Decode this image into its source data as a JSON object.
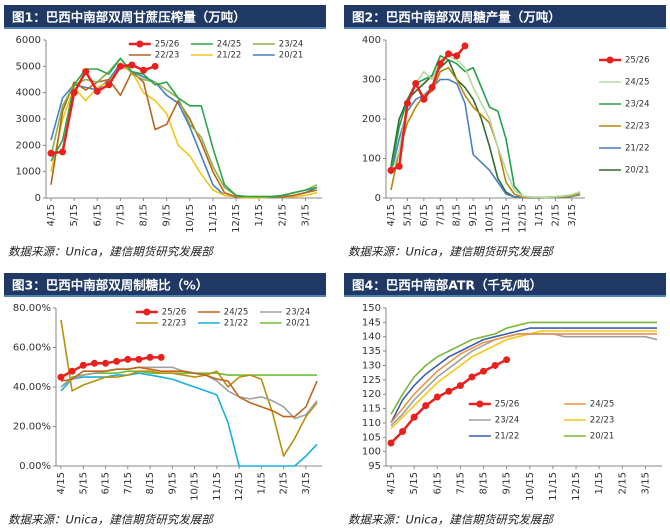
{
  "chart_data": [
    {
      "type": "line",
      "title": "图1：巴西中南部双周甘蔗压榨量（万吨）",
      "source": "数据来源：Unica，建信期货研究发展部",
      "legend": "top",
      "categories": [
        "4/15",
        null,
        "5/15",
        null,
        "6/15",
        null,
        "7/15",
        null,
        "8/15",
        null,
        "9/15",
        null,
        "10/15",
        null,
        "11/15",
        null,
        "12/15",
        null,
        "1/15",
        null,
        "2/15",
        null,
        "3/15",
        null
      ],
      "ylim": [
        0,
        6000
      ],
      "yticks": [
        0,
        1000,
        2000,
        3000,
        4000,
        5000,
        6000
      ],
      "series": [
        {
          "name": "25/26",
          "color": "#e8211f",
          "marker": true,
          "values": [
            1700,
            1750,
            4000,
            4800,
            4050,
            4300,
            5000,
            5050,
            4850,
            5000,
            null,
            null,
            null,
            null,
            null,
            null,
            null,
            null,
            null,
            null,
            null,
            null,
            null,
            null
          ]
        },
        {
          "name": "24/25",
          "color": "#2ca64a",
          "values": [
            1400,
            2200,
            4300,
            4900,
            4900,
            4700,
            5300,
            4800,
            4700,
            4300,
            4400,
            3800,
            3500,
            3500,
            1900,
            500,
            100,
            50,
            50,
            50,
            100,
            200,
            300,
            400
          ]
        },
        {
          "name": "23/24",
          "color": "#8bb04a",
          "values": [
            1600,
            3500,
            4300,
            4500,
            4400,
            4800,
            5300,
            4700,
            4500,
            4400,
            4100,
            3800,
            2800,
            2300,
            1200,
            400,
            100,
            50,
            50,
            50,
            100,
            200,
            300,
            500
          ]
        },
        {
          "name": "22/23",
          "color": "#b5651d",
          "values": [
            500,
            3300,
            4400,
            4100,
            4400,
            4500,
            3900,
            4800,
            4400,
            2600,
            2800,
            3700,
            3000,
            2100,
            1000,
            200,
            50,
            50,
            50,
            50,
            50,
            100,
            200,
            300
          ]
        },
        {
          "name": "21/22",
          "color": "#f5c518",
          "values": [
            1000,
            3000,
            4200,
            3700,
            4200,
            4400,
            5000,
            4800,
            4000,
            3700,
            3200,
            2000,
            1600,
            900,
            300,
            100,
            50,
            0,
            0,
            50,
            50,
            50,
            100,
            200
          ]
        },
        {
          "name": "20/21",
          "color": "#4a7fc1",
          "values": [
            2200,
            3800,
            4300,
            4200,
            4100,
            4500,
            5100,
            4800,
            4600,
            4400,
            3900,
            3600,
            2700,
            1600,
            500,
            100,
            50,
            50,
            50,
            50,
            50,
            100,
            200,
            400
          ]
        }
      ]
    },
    {
      "type": "line",
      "title": "图2：巴西中南部双周糖产量（万吨）",
      "source": "数据来源：Unica，建信期货研究发展部",
      "legend": "right",
      "categories": [
        "4/15",
        null,
        "5/15",
        null,
        "6/15",
        null,
        "7/15",
        null,
        "8/15",
        null,
        "9/15",
        null,
        "10/15",
        null,
        "11/15",
        null,
        "12/15",
        null,
        "1/15",
        null,
        "2/15",
        null,
        "3/15",
        null
      ],
      "ylim": [
        0,
        400
      ],
      "yticks": [
        0,
        100,
        200,
        300,
        400
      ],
      "series": [
        {
          "name": "25/26",
          "color": "#e8211f",
          "marker": true,
          "values": [
            70,
            80,
            240,
            290,
            250,
            280,
            340,
            365,
            360,
            385,
            null,
            null,
            null,
            null,
            null,
            null,
            null,
            null,
            null,
            null,
            null,
            null,
            null,
            null
          ]
        },
        {
          "name": "24/25",
          "color": "#b8d8a0",
          "values": [
            60,
            120,
            240,
            290,
            320,
            300,
            350,
            360,
            350,
            330,
            280,
            240,
            200,
            130,
            70,
            20,
            5,
            2,
            2,
            2,
            3,
            5,
            8,
            15
          ]
        },
        {
          "name": "23/24",
          "color": "#22a04a",
          "values": [
            70,
            180,
            250,
            290,
            300,
            310,
            360,
            350,
            340,
            320,
            330,
            280,
            230,
            220,
            150,
            30,
            5,
            2,
            2,
            2,
            3,
            5,
            8,
            15
          ]
        },
        {
          "name": "22/23",
          "color": "#b8860b",
          "values": [
            20,
            120,
            190,
            230,
            260,
            270,
            320,
            330,
            300,
            260,
            230,
            210,
            190,
            130,
            40,
            10,
            2,
            1,
            1,
            1,
            2,
            3,
            5,
            10
          ]
        },
        {
          "name": "21/22",
          "color": "#4a7fc1",
          "values": [
            60,
            150,
            220,
            250,
            260,
            280,
            300,
            300,
            290,
            240,
            110,
            90,
            70,
            40,
            10,
            3,
            1,
            0,
            0,
            1,
            1,
            2,
            4,
            8
          ]
        },
        {
          "name": "20/21",
          "color": "#2e6b2e",
          "values": [
            80,
            200,
            250,
            270,
            290,
            310,
            330,
            350,
            300,
            280,
            250,
            200,
            130,
            50,
            15,
            3,
            1,
            1,
            1,
            1,
            2,
            3,
            5,
            15
          ]
        }
      ]
    },
    {
      "type": "line",
      "title": "图3：巴西中南部双周制糖比（%）",
      "source": "数据来源：Unica，建信期货研究发展部",
      "legend": "top",
      "categories": [
        "4/15",
        null,
        "5/15",
        null,
        "6/15",
        null,
        "7/15",
        null,
        "8/15",
        null,
        "9/15",
        null,
        "10/15",
        null,
        "11/15",
        null,
        "12/15",
        null,
        "1/15",
        null,
        "2/15",
        null,
        "3/15",
        null
      ],
      "ylim": [
        0,
        80
      ],
      "yticks": [
        {
          "value": 0,
          "label": "0.00%"
        },
        {
          "value": 20,
          "label": "20.00%"
        },
        {
          "value": 40,
          "label": "40.00%"
        },
        {
          "value": 60,
          "label": "60.00%"
        },
        {
          "value": 80,
          "label": "80.00%"
        }
      ],
      "series": [
        {
          "name": "25/26",
          "color": "#e8211f",
          "marker": true,
          "values": [
            45,
            48,
            51,
            52,
            52,
            53,
            54,
            54,
            55,
            55,
            null,
            null,
            null,
            null,
            null,
            null,
            null,
            null,
            null,
            null,
            null,
            null,
            null,
            null
          ]
        },
        {
          "name": "24/25",
          "color": "#c0651d",
          "values": [
            43,
            44,
            48,
            48,
            48,
            49,
            49,
            50,
            49,
            48,
            48,
            48,
            47,
            46,
            44,
            43,
            35,
            32,
            30,
            28,
            25,
            25,
            30,
            43
          ]
        },
        {
          "name": "23/24",
          "color": "#a0a0a0",
          "values": [
            40,
            44,
            46,
            47,
            48,
            49,
            49,
            50,
            50,
            50,
            50,
            48,
            47,
            46,
            43,
            38,
            35,
            34,
            35,
            33,
            30,
            24,
            26,
            33
          ]
        },
        {
          "name": "22/23",
          "color": "#b8900b",
          "values": [
            74,
            38,
            41,
            43,
            45,
            45,
            46,
            48,
            48,
            47,
            47,
            46,
            45,
            46,
            48,
            40,
            45,
            46,
            44,
            27,
            5,
            14,
            25,
            32
          ]
        },
        {
          "name": "21/22",
          "color": "#1ab0e0",
          "values": [
            38,
            44,
            45,
            45,
            45,
            46,
            46,
            47,
            46,
            45,
            44,
            42,
            40,
            38,
            36,
            22,
            0,
            0,
            0,
            0,
            0,
            0,
            5,
            11
          ]
        },
        {
          "name": "20/21",
          "color": "#6cbf3a",
          "values": [
            40,
            45,
            46,
            47,
            47,
            47,
            48,
            48,
            47,
            47,
            47,
            47,
            47,
            47,
            47,
            46,
            46,
            46,
            46,
            46,
            46,
            46,
            46,
            46
          ]
        }
      ]
    },
    {
      "type": "line",
      "title": "图4：巴西中南部ATR（千克/吨）",
      "source": "数据来源：Unica，建信期货研究发展部",
      "legend": "bottom",
      "categories": [
        "4/15",
        null,
        "5/15",
        null,
        "6/15",
        null,
        "7/15",
        null,
        "8/15",
        null,
        "9/15",
        null,
        "10/15",
        null,
        "11/15",
        null,
        "12/15",
        null,
        "1/15",
        null,
        "2/15",
        null,
        "3/15",
        null
      ],
      "ylim": [
        95,
        150
      ],
      "yticks": [
        95,
        100,
        105,
        110,
        115,
        120,
        125,
        130,
        135,
        140,
        145,
        150
      ],
      "series": [
        {
          "name": "25/26",
          "color": "#e8211f",
          "marker": true,
          "values": [
            103,
            107,
            112,
            116,
            119,
            121,
            123,
            126,
            128,
            130,
            132,
            null,
            null,
            null,
            null,
            null,
            null,
            null,
            null,
            null,
            null,
            null,
            null,
            null
          ]
        },
        {
          "name": "24/25",
          "color": "#e8944a",
          "values": [
            110,
            115,
            120,
            124,
            128,
            131,
            134,
            136,
            138,
            139,
            140,
            141,
            141,
            141,
            141,
            141,
            141,
            141,
            141,
            141,
            141,
            141,
            141,
            141
          ]
        },
        {
          "name": "23/24",
          "color": "#a0a0a0",
          "values": [
            109,
            113,
            118,
            122,
            126,
            129,
            132,
            135,
            137,
            139,
            140,
            141,
            141,
            141,
            141,
            140,
            140,
            140,
            140,
            140,
            140,
            140,
            140,
            139
          ]
        },
        {
          "name": "22/23",
          "color": "#f5c518",
          "values": [
            108,
            112,
            116,
            120,
            124,
            127,
            130,
            133,
            135,
            137,
            139,
            140,
            141,
            142,
            142,
            142,
            142,
            142,
            142,
            142,
            142,
            142,
            142,
            142
          ]
        },
        {
          "name": "21/22",
          "color": "#3a5fb0",
          "values": [
            110,
            118,
            123,
            127,
            130,
            133,
            135,
            137,
            139,
            140,
            141,
            142,
            143,
            143,
            143,
            143,
            143,
            143,
            143,
            143,
            143,
            143,
            143,
            143
          ]
        },
        {
          "name": "20/21",
          "color": "#7ab83a",
          "values": [
            113,
            120,
            126,
            130,
            133,
            135,
            137,
            139,
            140,
            141,
            143,
            144,
            145,
            145,
            145,
            145,
            145,
            145,
            145,
            145,
            145,
            145,
            145,
            145
          ]
        }
      ]
    }
  ]
}
